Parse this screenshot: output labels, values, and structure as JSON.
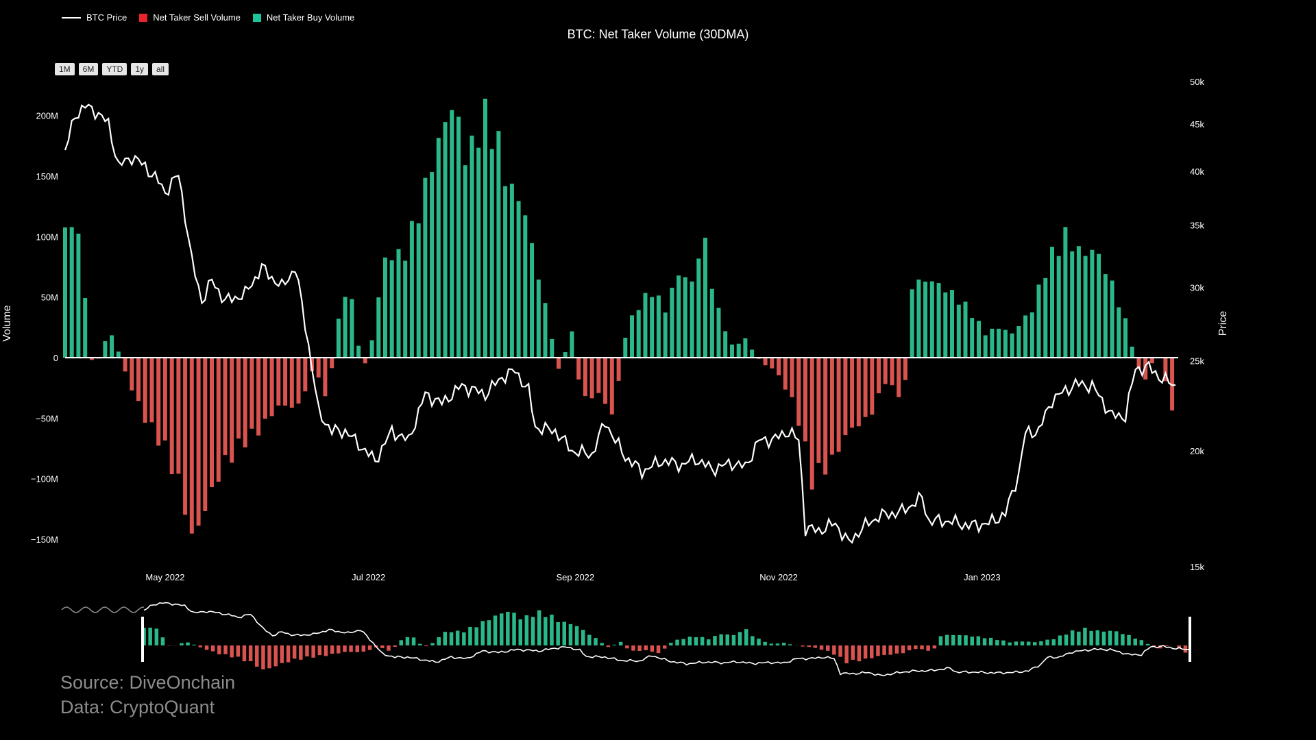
{
  "legend": {
    "price_label": "BTC Price",
    "sell_label": "Net Taker Sell Volume",
    "buy_label": "Net Taker Buy Volume"
  },
  "range_buttons": [
    "1M",
    "6M",
    "YTD",
    "1y",
    "all"
  ],
  "source": {
    "line1": "Source: DiveOnchain",
    "line2": "Data: CryptoQuant"
  },
  "colors": {
    "price": "#ffffff",
    "sell": "#d9534f",
    "buy": "#2ab88a",
    "sell_legend": "#e8232a",
    "buy_legend": "#1fc49a"
  },
  "chart_data": {
    "type": "bar+line",
    "title": "BTC: Net Taker Volume (30DMA)",
    "ylabel": "Volume",
    "y2label": "Price",
    "ylim": [
      -170,
      220
    ],
    "y2lim": [
      15000,
      50000
    ],
    "y2scale": "log",
    "x_range": [
      "2022-04-01",
      "2023-02-28"
    ],
    "y_ticks": [
      "200M",
      "150M",
      "100M",
      "50M",
      "0",
      "−50M",
      "−100M",
      "−150M"
    ],
    "y_tick_values": [
      200,
      150,
      100,
      50,
      0,
      -50,
      -100,
      -150
    ],
    "y2_ticks": [
      "50k",
      "45k",
      "40k",
      "35k",
      "30k",
      "25k",
      "20k",
      "15k"
    ],
    "y2_tick_values": [
      50000,
      45000,
      40000,
      35000,
      30000,
      25000,
      20000,
      15000
    ],
    "x_ticks": [
      "May 2022",
      "Jul 2022",
      "Sep 2022",
      "Nov 2022",
      "Jan 2023"
    ],
    "x_tick_dates": [
      "2022-05-01",
      "2022-07-01",
      "2022-09-01",
      "2022-11-01",
      "2023-01-01"
    ],
    "volume_anchors": [
      [
        "2022-04-01",
        100
      ],
      [
        "2022-04-03",
        118
      ],
      [
        "2022-04-06",
        82
      ],
      [
        "2022-04-09",
        -2
      ],
      [
        "2022-04-12",
        0
      ],
      [
        "2022-04-14",
        26
      ],
      [
        "2022-04-17",
        5
      ],
      [
        "2022-04-20",
        -20
      ],
      [
        "2022-04-25",
        -50
      ],
      [
        "2022-05-01",
        -75
      ],
      [
        "2022-05-06",
        -110
      ],
      [
        "2022-05-09",
        -150
      ],
      [
        "2022-05-13",
        -125
      ],
      [
        "2022-05-18",
        -90
      ],
      [
        "2022-05-24",
        -70
      ],
      [
        "2022-05-29",
        -60
      ],
      [
        "2022-06-04",
        -40
      ],
      [
        "2022-06-10",
        -40
      ],
      [
        "2022-06-15",
        -5
      ],
      [
        "2022-06-18",
        -35
      ],
      [
        "2022-06-20",
        -8
      ],
      [
        "2022-06-22",
        30
      ],
      [
        "2022-06-25",
        65
      ],
      [
        "2022-06-28",
        10
      ],
      [
        "2022-07-01",
        -12
      ],
      [
        "2022-07-03",
        40
      ],
      [
        "2022-07-07",
        90
      ],
      [
        "2022-07-11",
        80
      ],
      [
        "2022-07-16",
        120
      ],
      [
        "2022-07-21",
        170
      ],
      [
        "2022-07-26",
        210
      ],
      [
        "2022-07-31",
        160
      ],
      [
        "2022-08-04",
        200
      ],
      [
        "2022-08-08",
        185
      ],
      [
        "2022-08-12",
        140
      ],
      [
        "2022-08-16",
        130
      ],
      [
        "2022-08-20",
        80
      ],
      [
        "2022-08-24",
        30
      ],
      [
        "2022-08-27",
        -10
      ],
      [
        "2022-08-31",
        20
      ],
      [
        "2022-09-03",
        -35
      ],
      [
        "2022-09-08",
        -30
      ],
      [
        "2022-09-13",
        -50
      ],
      [
        "2022-09-15",
        10
      ],
      [
        "2022-09-19",
        40
      ],
      [
        "2022-09-24",
        55
      ],
      [
        "2022-09-28",
        40
      ],
      [
        "2022-10-02",
        70
      ],
      [
        "2022-10-07",
        60
      ],
      [
        "2022-10-09",
        110
      ],
      [
        "2022-10-13",
        45
      ],
      [
        "2022-10-18",
        10
      ],
      [
        "2022-10-22",
        15
      ],
      [
        "2022-10-27",
        -5
      ],
      [
        "2022-10-31",
        -10
      ],
      [
        "2022-11-06",
        -40
      ],
      [
        "2022-11-11",
        -100
      ],
      [
        "2022-11-17",
        -85
      ],
      [
        "2022-11-22",
        -60
      ],
      [
        "2022-11-28",
        -50
      ],
      [
        "2022-12-03",
        -20
      ],
      [
        "2022-12-07",
        -30
      ],
      [
        "2022-12-09",
        -20
      ],
      [
        "2022-12-11",
        60
      ],
      [
        "2022-12-16",
        65
      ],
      [
        "2022-12-22",
        55
      ],
      [
        "2022-12-28",
        40
      ],
      [
        "2023-01-02",
        20
      ],
      [
        "2023-01-06",
        25
      ],
      [
        "2023-01-10",
        20
      ],
      [
        "2023-01-16",
        40
      ],
      [
        "2023-01-21",
        80
      ],
      [
        "2023-01-26",
        100
      ],
      [
        "2023-01-31",
        85
      ],
      [
        "2023-02-04",
        90
      ],
      [
        "2023-02-09",
        60
      ],
      [
        "2023-02-13",
        30
      ],
      [
        "2023-02-17",
        -10
      ],
      [
        "2023-02-20",
        -20
      ],
      [
        "2023-02-22",
        10
      ],
      [
        "2023-02-25",
        -20
      ],
      [
        "2023-02-28",
        -55
      ]
    ],
    "price_anchors": [
      [
        "2022-04-01",
        42000
      ],
      [
        "2022-04-04",
        46000
      ],
      [
        "2022-04-07",
        47000
      ],
      [
        "2022-04-10",
        46500
      ],
      [
        "2022-04-14",
        45000
      ],
      [
        "2022-04-17",
        40500
      ],
      [
        "2022-04-21",
        41500
      ],
      [
        "2022-04-25",
        40500
      ],
      [
        "2022-04-29",
        39000
      ],
      [
        "2022-05-01",
        38000
      ],
      [
        "2022-05-05",
        39700
      ],
      [
        "2022-05-09",
        32000
      ],
      [
        "2022-05-12",
        29000
      ],
      [
        "2022-05-15",
        30500
      ],
      [
        "2022-05-19",
        29000
      ],
      [
        "2022-05-25",
        29500
      ],
      [
        "2022-05-30",
        31500
      ],
      [
        "2022-06-05",
        30000
      ],
      [
        "2022-06-09",
        31500
      ],
      [
        "2022-06-13",
        26000
      ],
      [
        "2022-06-16",
        22000
      ],
      [
        "2022-06-20",
        21000
      ],
      [
        "2022-06-24",
        21000
      ],
      [
        "2022-06-27",
        20500
      ],
      [
        "2022-07-03",
        19500
      ],
      [
        "2022-07-08",
        21000
      ],
      [
        "2022-07-13",
        20500
      ],
      [
        "2022-07-18",
        23000
      ],
      [
        "2022-07-23",
        22500
      ],
      [
        "2022-07-29",
        23500
      ],
      [
        "2022-08-05",
        23000
      ],
      [
        "2022-08-10",
        24000
      ],
      [
        "2022-08-14",
        24400
      ],
      [
        "2022-08-18",
        23200
      ],
      [
        "2022-08-20",
        21200
      ],
      [
        "2022-08-26",
        21000
      ],
      [
        "2022-08-31",
        20000
      ],
      [
        "2022-09-06",
        19800
      ],
      [
        "2022-09-10",
        21500
      ],
      [
        "2022-09-13",
        20500
      ],
      [
        "2022-09-16",
        19700
      ],
      [
        "2022-09-21",
        19000
      ],
      [
        "2022-09-27",
        19500
      ],
      [
        "2022-10-03",
        19300
      ],
      [
        "2022-10-07",
        19600
      ],
      [
        "2022-10-12",
        19100
      ],
      [
        "2022-10-18",
        19400
      ],
      [
        "2022-10-22",
        19200
      ],
      [
        "2022-10-26",
        20500
      ],
      [
        "2022-10-31",
        20600
      ],
      [
        "2022-11-04",
        21000
      ],
      [
        "2022-11-07",
        20500
      ],
      [
        "2022-11-09",
        16500
      ],
      [
        "2022-11-13",
        16400
      ],
      [
        "2022-11-18",
        16700
      ],
      [
        "2022-11-22",
        15900
      ],
      [
        "2022-11-26",
        16500
      ],
      [
        "2022-12-01",
        17000
      ],
      [
        "2022-12-08",
        17200
      ],
      [
        "2022-12-14",
        17800
      ],
      [
        "2022-12-16",
        16800
      ],
      [
        "2022-12-22",
        16800
      ],
      [
        "2022-12-28",
        16600
      ],
      [
        "2023-01-03",
        16700
      ],
      [
        "2023-01-08",
        17100
      ],
      [
        "2023-01-12",
        18900
      ],
      [
        "2023-01-14",
        20900
      ],
      [
        "2023-01-18",
        21000
      ],
      [
        "2023-01-22",
        22700
      ],
      [
        "2023-01-29",
        23600
      ],
      [
        "2023-02-03",
        23500
      ],
      [
        "2023-02-09",
        21800
      ],
      [
        "2023-02-13",
        21800
      ],
      [
        "2023-02-16",
        24500
      ],
      [
        "2023-02-20",
        24600
      ],
      [
        "2023-02-24",
        23900
      ],
      [
        "2023-02-28",
        23500
      ]
    ]
  }
}
